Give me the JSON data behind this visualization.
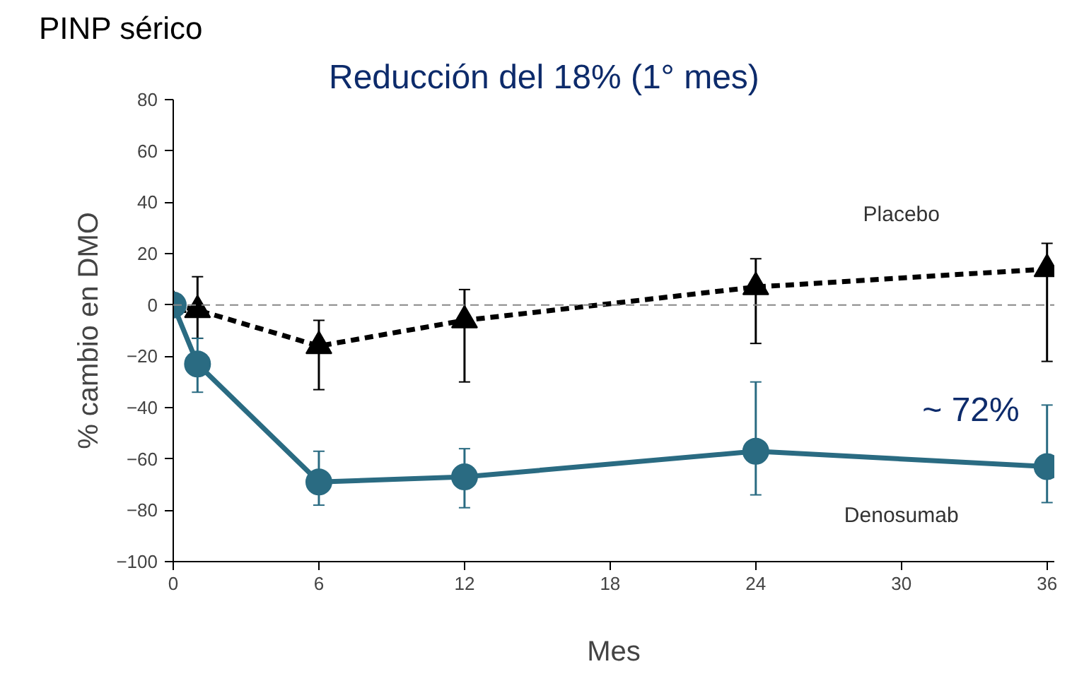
{
  "chart_data": {
    "type": "line",
    "title": "PINP sérico",
    "subtitle": "Reducción del 18% (1° mes)",
    "xlabel": "Mes",
    "ylabel": "% cambio en DMO",
    "x": [
      0,
      1,
      6,
      12,
      24,
      36
    ],
    "series": [
      {
        "name": "Placebo",
        "color": "#000000",
        "values": [
          0,
          -2,
          -16,
          -6,
          7,
          14
        ],
        "errors": [
          null,
          [
            -13,
            11
          ],
          [
            -33,
            -6
          ],
          [
            -30,
            6
          ],
          [
            -15,
            18
          ],
          [
            -22,
            24
          ]
        ],
        "marker": "triangle",
        "line_style": "dashed"
      },
      {
        "name": "Denosumab",
        "color": "#2a6b82",
        "values": [
          0,
          -23,
          -69,
          -67,
          -57,
          -63
        ],
        "errors": [
          null,
          [
            -34,
            -13
          ],
          [
            -78,
            -57
          ],
          [
            -79,
            -56
          ],
          [
            -74,
            -30
          ],
          [
            -77,
            -39
          ]
        ],
        "marker": "circle",
        "line_style": "solid"
      }
    ],
    "annotations": [
      "~ 72%"
    ],
    "ref_lines": [
      {
        "axis": "y",
        "value": 0,
        "color": "#888888",
        "line_style": "dashed"
      }
    ],
    "xlim": [
      0,
      36.3
    ],
    "ylim": [
      -100,
      80
    ],
    "xticks": [
      0,
      6,
      12,
      18,
      24,
      30,
      36
    ],
    "yticks": [
      -100,
      -80,
      -60,
      -40,
      -20,
      0,
      20,
      40,
      60,
      80
    ],
    "grid": false
  }
}
